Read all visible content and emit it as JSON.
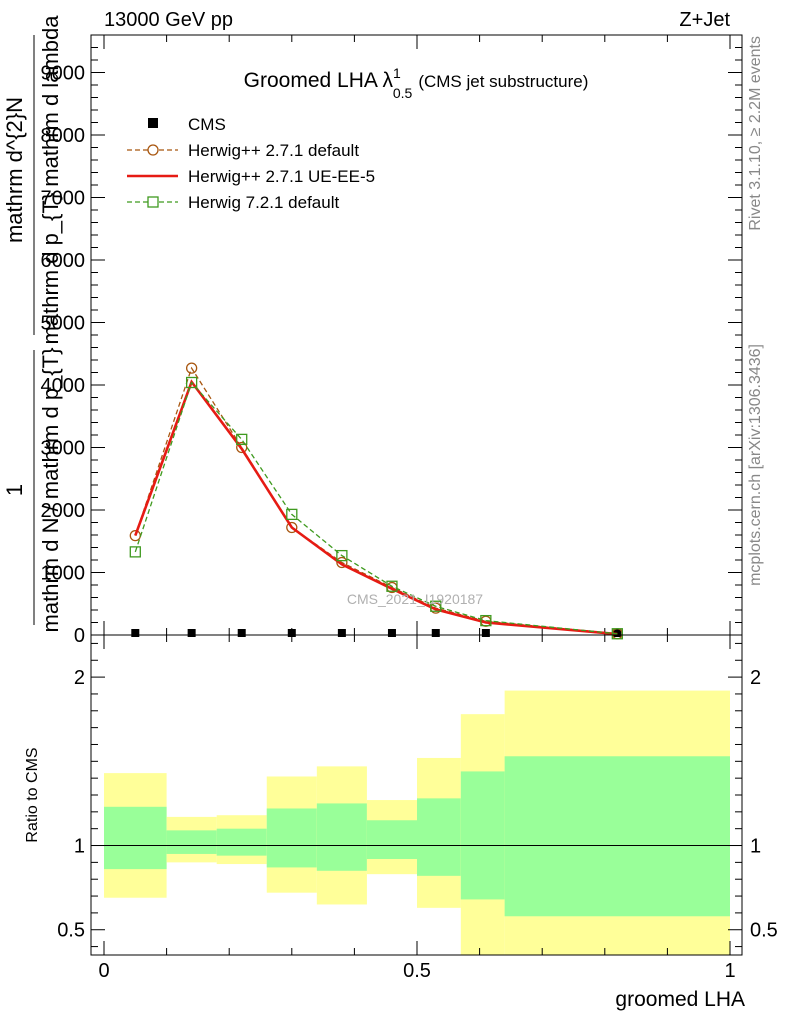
{
  "header": {
    "energy_label": "13000 GeV pp",
    "process_label": "Z+Jet"
  },
  "side_labels": {
    "rivet": "Rivet 3.1.10, ≥ 2.2M events",
    "mcplots": "mcplots.cern.ch [arXiv:1306.3436]"
  },
  "watermark": "CMS_2021_I1920187",
  "chart_data": [
    {
      "type": "line",
      "title": "Groomed LHA",
      "title_symbol": "λ",
      "title_sup": "1",
      "title_sub": "0.5",
      "title_suffix": "(CMS jet substructure)",
      "ylabel": {
        "top_numerator": "mathrm d^{2}N",
        "top_denominator": "mathrm d p_{T} mathrm d lambda",
        "left_numerator": "1",
        "left_denominator": "mathrm d N / mathrm d p_{T}"
      },
      "xlim": [
        0,
        1
      ],
      "ylim": [
        0,
        9600
      ],
      "yticks": [
        {
          "value": 0,
          "label": "0"
        },
        {
          "value": 1000,
          "label": "1000"
        },
        {
          "value": 2000,
          "label": "2000"
        },
        {
          "value": 3000,
          "label": "3000"
        },
        {
          "value": 4000,
          "label": "4000"
        },
        {
          "value": 5000,
          "label": "5000"
        },
        {
          "value": 6000,
          "label": "6000"
        },
        {
          "value": 7000,
          "label": "7000"
        },
        {
          "value": 8000,
          "label": "8000"
        },
        {
          "value": 9000,
          "label": "9000"
        }
      ],
      "legend_position": "top-left",
      "series": [
        {
          "name": "CMS",
          "style": "data",
          "color": "#000000",
          "x": [
            0.05,
            0.14,
            0.22,
            0.3,
            0.38,
            0.46,
            0.53,
            0.61,
            0.82
          ],
          "y": [
            0,
            0,
            0,
            0,
            0,
            0,
            0,
            0,
            0
          ]
        },
        {
          "name": "Herwig++ 2.7.1 default",
          "style": "dashed-circle",
          "color": "#a8560f",
          "x": [
            0.05,
            0.14,
            0.22,
            0.3,
            0.38,
            0.46,
            0.53,
            0.61,
            0.82
          ],
          "y": [
            1590,
            4270,
            3000,
            1720,
            1160,
            760,
            430,
            220,
            20
          ]
        },
        {
          "name": "Herwig++ 2.7.1 UE-EE-5",
          "style": "solid",
          "color": "#e61b14",
          "x": [
            0.05,
            0.14,
            0.22,
            0.3,
            0.38,
            0.46,
            0.53,
            0.61,
            0.82
          ],
          "y": [
            1590,
            4050,
            2980,
            1720,
            1130,
            740,
            410,
            200,
            15
          ]
        },
        {
          "name": "Herwig 7.2.1 default",
          "style": "dashed-square",
          "color": "#3f9a1f",
          "x": [
            0.05,
            0.14,
            0.22,
            0.3,
            0.38,
            0.46,
            0.53,
            0.61,
            0.82
          ],
          "y": [
            1330,
            4040,
            3130,
            1930,
            1270,
            780,
            460,
            230,
            20
          ]
        }
      ]
    },
    {
      "type": "area",
      "ylabel": "Ratio to CMS",
      "xlabel": "groomed LHA",
      "xlim": [
        0,
        1
      ],
      "ylim": [
        0.35,
        2.25
      ],
      "yticks": [
        {
          "value": 0.5,
          "label": "0.5"
        },
        {
          "value": 1,
          "label": "1"
        },
        {
          "value": 2,
          "label": "2"
        }
      ],
      "xticks": [
        {
          "value": 0,
          "label": "0"
        },
        {
          "value": 0.5,
          "label": "0.5"
        },
        {
          "value": 1,
          "label": "1"
        }
      ],
      "reference_line": 1,
      "bands": [
        {
          "x0": 0.0,
          "x1": 0.1,
          "yellow_lo": 0.69,
          "yellow_hi": 1.43,
          "green_lo": 0.86,
          "green_hi": 1.23
        },
        {
          "x0": 0.1,
          "x1": 0.18,
          "yellow_lo": 0.9,
          "yellow_hi": 1.17,
          "green_lo": 0.95,
          "green_hi": 1.09
        },
        {
          "x0": 0.18,
          "x1": 0.26,
          "yellow_lo": 0.89,
          "yellow_hi": 1.18,
          "green_lo": 0.94,
          "green_hi": 1.1
        },
        {
          "x0": 0.26,
          "x1": 0.34,
          "yellow_lo": 0.72,
          "yellow_hi": 1.41,
          "green_lo": 0.87,
          "green_hi": 1.22
        },
        {
          "x0": 0.34,
          "x1": 0.42,
          "yellow_lo": 0.65,
          "yellow_hi": 1.47,
          "green_lo": 0.85,
          "green_hi": 1.25
        },
        {
          "x0": 0.42,
          "x1": 0.5,
          "yellow_lo": 0.83,
          "yellow_hi": 1.27,
          "green_lo": 0.92,
          "green_hi": 1.15
        },
        {
          "x0": 0.5,
          "x1": 0.57,
          "yellow_lo": 0.63,
          "yellow_hi": 1.52,
          "green_lo": 0.82,
          "green_hi": 1.28
        },
        {
          "x0": 0.57,
          "x1": 0.64,
          "yellow_lo": 0.35,
          "yellow_hi": 1.78,
          "green_lo": 0.68,
          "green_hi": 1.44
        },
        {
          "x0": 0.64,
          "x1": 1.0,
          "yellow_lo": 0.35,
          "yellow_hi": 1.92,
          "green_lo": 0.58,
          "green_hi": 1.53
        }
      ],
      "colors": {
        "yellow": "#ffff99",
        "green": "#99ff99"
      }
    }
  ]
}
